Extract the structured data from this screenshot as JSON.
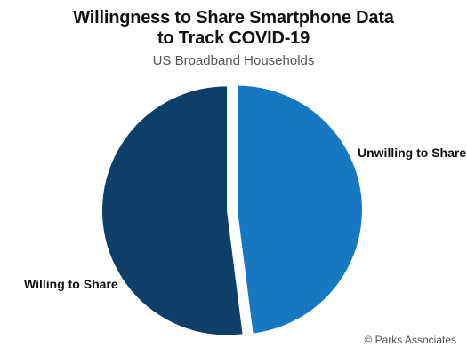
{
  "chart_data": {
    "type": "pie",
    "title_line1": "Willingness to Share Smartphone Data",
    "title_line2": "to Track COVID-19",
    "subtitle": "US Broadband Households",
    "slices": [
      {
        "label": "Unwilling to Share",
        "value": 48,
        "color": "#1778c2"
      },
      {
        "label": "Willing to Share",
        "value": 52,
        "color": "#0e3f69"
      }
    ]
  },
  "footer": {
    "copyright": "© Parks Associates"
  }
}
